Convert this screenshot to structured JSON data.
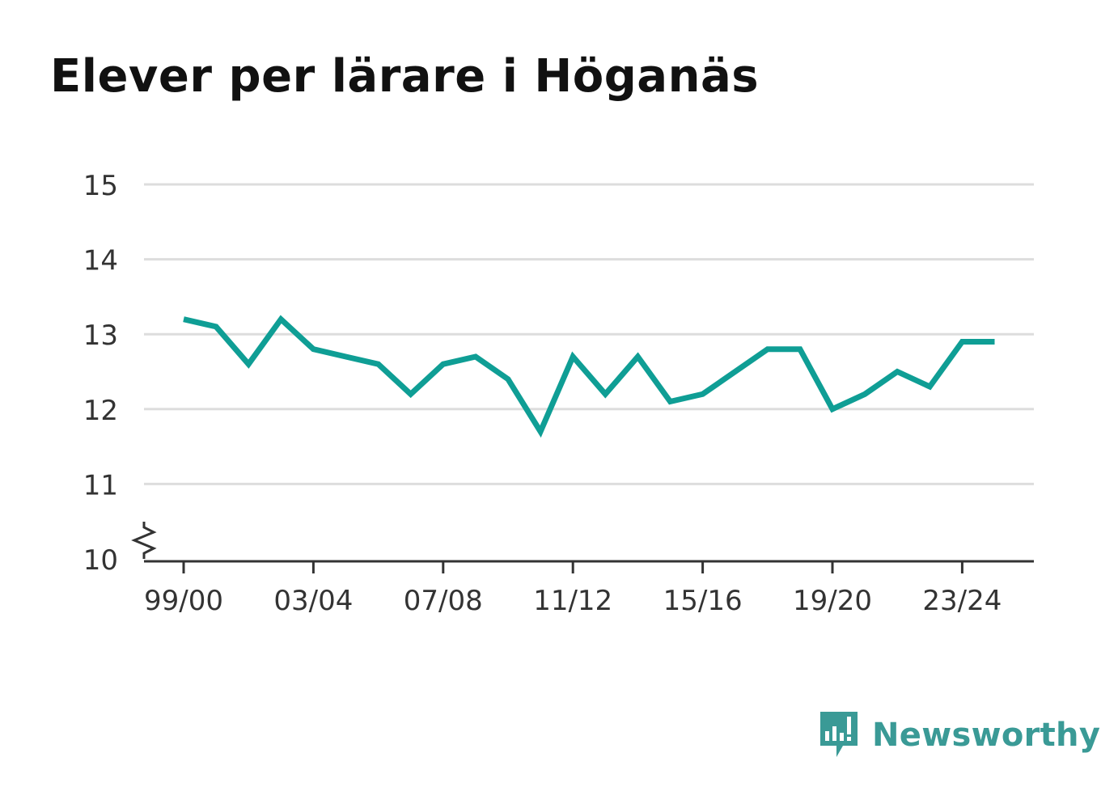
{
  "title": "Elever per lärare i Höganäs",
  "brand": {
    "name": "Newsworthy",
    "color": "#3a9a96"
  },
  "colors": {
    "line": "#0f9e95",
    "grid": "#dddddd",
    "axis": "#333333",
    "text": "#333333"
  },
  "chart_data": {
    "type": "line",
    "title": "Elever per lärare i Höganäs",
    "xlabel": "",
    "ylabel": "",
    "x": [
      "99/00",
      "00/01",
      "01/02",
      "02/03",
      "03/04",
      "04/05",
      "05/06",
      "06/07",
      "07/08",
      "08/09",
      "09/10",
      "10/11",
      "11/12",
      "12/13",
      "13/14",
      "14/15",
      "15/16",
      "16/17",
      "17/18",
      "18/19",
      "19/20",
      "20/21",
      "21/22",
      "22/23",
      "23/24",
      "24/25"
    ],
    "series": [
      {
        "name": "",
        "values": [
          13.2,
          13.1,
          12.6,
          13.2,
          12.8,
          12.7,
          12.6,
          12.2,
          12.6,
          12.7,
          12.4,
          11.7,
          12.7,
          12.2,
          12.7,
          12.1,
          12.2,
          12.5,
          12.8,
          12.8,
          12.0,
          12.2,
          12.5,
          12.3,
          12.9,
          12.9
        ]
      }
    ],
    "xticks": [
      "99/00",
      "03/04",
      "07/08",
      "11/12",
      "15/16",
      "19/20",
      "23/24"
    ],
    "yticks": [
      10,
      11,
      12,
      13,
      14,
      15
    ],
    "ylim": [
      10,
      15
    ],
    "y_axis_break": true,
    "grid": true,
    "legend": "none"
  }
}
